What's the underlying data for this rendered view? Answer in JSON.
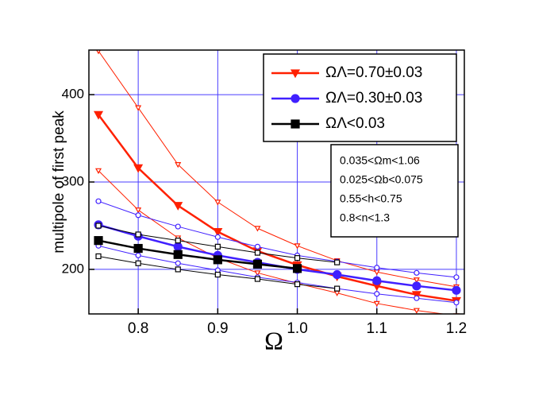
{
  "chart_data": {
    "type": "line",
    "x_label": "Ω",
    "y_label": "multipole of first peak",
    "x": [
      0.75,
      0.8,
      0.85,
      0.9,
      0.95,
      1.0,
      1.05,
      1.1,
      1.15,
      1.2
    ],
    "xlim": [
      0.738,
      1.21
    ],
    "ylim": [
      149,
      451
    ],
    "xticks": [
      0.8,
      0.9,
      {
        "value": 1,
        "label": "1.0"
      },
      1.1,
      1.2
    ],
    "yticks": [
      200,
      300,
      400
    ],
    "grid": true,
    "series": [
      {
        "name": "ΩΛ=0.70±0.03",
        "color": "#ff2000",
        "marker": "triangle-down",
        "filled": true,
        "width": 2.5,
        "values": [
          377,
          316,
          273,
          243,
          221,
          205,
          192,
          181,
          171,
          164
        ]
      },
      {
        "color": "#ff2000",
        "marker": "triangle-down",
        "filled": false,
        "width": 1,
        "values": [
          450,
          385,
          320,
          277,
          247,
          227,
          210,
          197,
          188,
          180
        ]
      },
      {
        "color": "#ff2000",
        "marker": "triangle-down",
        "filled": false,
        "width": 1,
        "values": [
          313,
          268,
          236,
          213,
          196,
          184,
          173,
          161,
          153,
          147
        ]
      },
      {
        "name": "ΩΛ=0.30±0.03",
        "color": "#4020ff",
        "marker": "circle",
        "filled": true,
        "width": 2.5,
        "values": [
          251,
          238,
          226,
          216,
          208,
          200,
          194,
          187,
          181,
          176
        ]
      },
      {
        "color": "#4020ff",
        "marker": "circle",
        "filled": false,
        "width": 1,
        "values": [
          278,
          262,
          249,
          237,
          226,
          216,
          209,
          202,
          196,
          191
        ]
      },
      {
        "color": "#4020ff",
        "marker": "circle",
        "filled": false,
        "width": 1,
        "values": [
          227,
          216,
          207,
          199,
          191,
          185,
          178,
          172,
          167,
          162
        ]
      },
      {
        "name": "ΩΛ<0.03",
        "color": "#000000",
        "marker": "square",
        "filled": true,
        "width": 2.5,
        "values": [
          233,
          224,
          217,
          211,
          206,
          201,
          null,
          null,
          null,
          null
        ]
      },
      {
        "color": "#000000",
        "marker": "square",
        "filled": false,
        "width": 1,
        "values": [
          250,
          240,
          233,
          226,
          219,
          213,
          208,
          null,
          null,
          null
        ]
      },
      {
        "color": "#000000",
        "marker": "square",
        "filled": false,
        "width": 1,
        "values": [
          215,
          207,
          200,
          194,
          189,
          183,
          178,
          null,
          null,
          null
        ]
      }
    ],
    "annotations": [
      "0.035<Ωm<1.06",
      "0.025<Ωb<0.075",
      "0.55<h<0.75",
      "0.8<n<1.3"
    ]
  }
}
